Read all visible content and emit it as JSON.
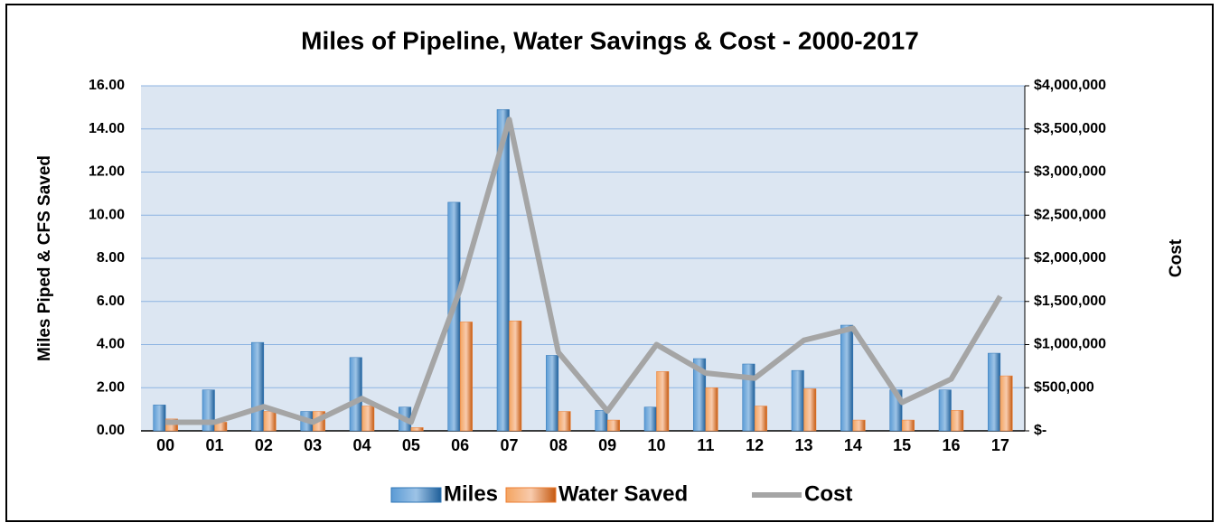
{
  "chart_data": {
    "type": "bar_line",
    "title": "Miles of Pipeline, Water Savings & Cost - 2000-2017",
    "y_label": "Miles Piped & CFS Saved",
    "y2_label": "Cost",
    "categories": [
      "00",
      "01",
      "02",
      "03",
      "04",
      "05",
      "06",
      "07",
      "08",
      "09",
      "10",
      "11",
      "12",
      "13",
      "14",
      "15",
      "16",
      "17"
    ],
    "series": [
      {
        "name": "Miles",
        "type": "bar",
        "color": "#2e75b6",
        "values": [
          1.2,
          1.9,
          4.1,
          0.9,
          3.4,
          1.1,
          10.6,
          14.9,
          3.5,
          0.95,
          1.1,
          3.35,
          3.1,
          2.8,
          4.9,
          1.9,
          1.9,
          3.6
        ]
      },
      {
        "name": "Water Saved",
        "type": "bar",
        "color": "#ed7d31",
        "values": [
          0.55,
          0.4,
          0.9,
          0.9,
          1.15,
          0.15,
          5.05,
          5.1,
          0.9,
          0.5,
          2.75,
          2.0,
          1.15,
          1.95,
          0.5,
          0.5,
          0.95,
          2.55
        ]
      },
      {
        "name": "Cost",
        "type": "line",
        "axis": "y2",
        "color": "#a5a5a5",
        "values": [
          100000,
          100000,
          280000,
          100000,
          375000,
          100000,
          1640000,
          3610000,
          910000,
          230000,
          1000000,
          670000,
          610000,
          1050000,
          1190000,
          330000,
          600000,
          1560000
        ]
      }
    ],
    "ylim": [
      0,
      16
    ],
    "yticks": [
      {
        "value": 0,
        "label": "0.00"
      },
      {
        "value": 2,
        "label": "2.00"
      },
      {
        "value": 4,
        "label": "4.00"
      },
      {
        "value": 6,
        "label": "6.00"
      },
      {
        "value": 8,
        "label": "8.00"
      },
      {
        "value": 10,
        "label": "10.00"
      },
      {
        "value": 12,
        "label": "12.00"
      },
      {
        "value": 14,
        "label": "14.00"
      },
      {
        "value": 16,
        "label": "16.00"
      }
    ],
    "y2lim": [
      0,
      4000000
    ],
    "y2ticks": [
      {
        "value": 0,
        "label": "$-"
      },
      {
        "value": 500000,
        "label": "$500,000"
      },
      {
        "value": 1000000,
        "label": "$1,000,000"
      },
      {
        "value": 1500000,
        "label": "$1,500,000"
      },
      {
        "value": 2000000,
        "label": "$2,000,000"
      },
      {
        "value": 2500000,
        "label": "$2,500,000"
      },
      {
        "value": 3000000,
        "label": "$3,000,000"
      },
      {
        "value": 3500000,
        "label": "$3,500,000"
      },
      {
        "value": 4000000,
        "label": "$4,000,000"
      }
    ],
    "grid": true,
    "legend": "bottom"
  }
}
